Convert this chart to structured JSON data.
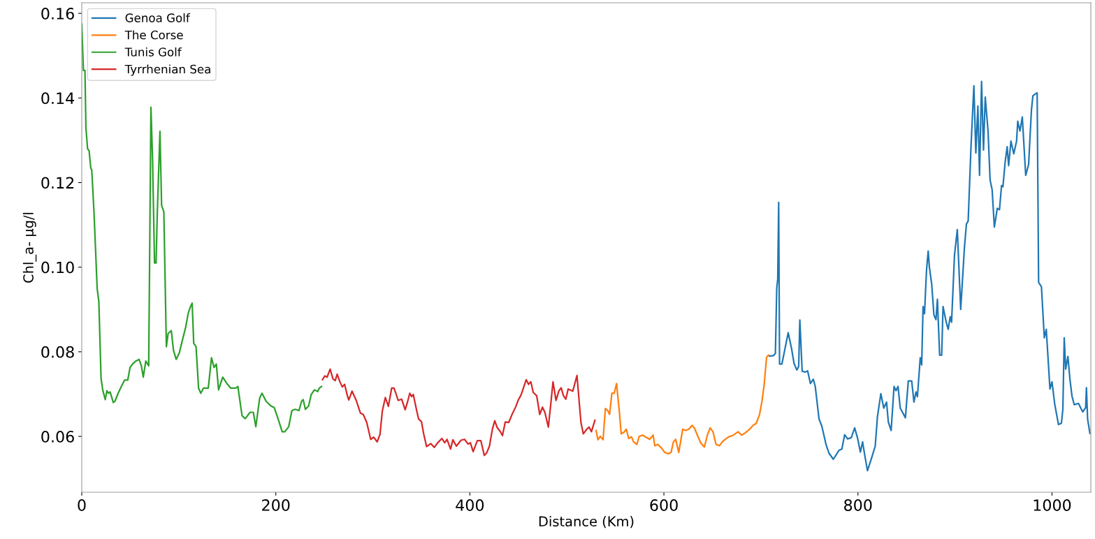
{
  "chart_data": {
    "type": "line",
    "xlabel": "Distance (Km)",
    "ylabel": "Chl_a- µg/l",
    "xlim": [
      0,
      1040
    ],
    "ylim": [
      0.0468,
      0.1625
    ],
    "xticks": [
      0,
      200,
      400,
      600,
      800,
      1000
    ],
    "yticks": [
      0.06,
      0.08,
      {
        "value": 0.1,
        "label": "0.10"
      },
      0.12,
      0.14,
      0.16
    ],
    "grid": false,
    "legend": "top left",
    "marker": "none",
    "line_style": "solid",
    "series": [
      {
        "name": "Genoa Golf",
        "color": "#1f77b4",
        "x": [
          708.9,
          713,
          714.9,
          716.3,
          717.3,
          718.3,
          719.2,
          721.6,
          724,
          728.1,
          731.7,
          734.1,
          737,
          738.9,
          740.1,
          742.5,
          745.6,
          748.1,
          751,
          754,
          756,
          759.9,
          762.8,
          767.2,
          770.2,
          774.6,
          777.5,
          780.4,
          783.4,
          786.3,
          789.3,
          793.1,
          796.6,
          799.5,
          802.5,
          804.8,
          806.9,
          809.8,
          814.2,
          817.8,
          820.1,
          823.6,
          826.6,
          829.5,
          831.3,
          834.2,
          837.2,
          839.2,
          841.3,
          843.6,
          848.9,
          851.9,
          855.4,
          857.7,
          859.8,
          861.3,
          864.2,
          865.7,
          867.1,
          868.6,
          870.7,
          872.4,
          873.6,
          876,
          878.3,
          880.4,
          881.9,
          884.2,
          886.3,
          887.7,
          890.7,
          893,
          895.1,
          896.5,
          899.5,
          902.4,
          905.9,
          909.8,
          911.8,
          913.6,
          916.5,
          919.5,
          921.5,
          923.6,
          925.3,
          927.4,
          929.4,
          931.2,
          934.1,
          936.2,
          938.3,
          940.6,
          943.6,
          945.9,
          948,
          949.4,
          951.8,
          953.8,
          955.3,
          957.7,
          960.6,
          963.5,
          964.7,
          967,
          969.4,
          972.9,
          975.9,
          978.8,
          980.3,
          982.4,
          984.7,
          986.2,
          989.1,
          992.1,
          994.1,
          995.9,
          997.9,
          1000,
          1002.9,
          1006.7,
          1009.7,
          1011.2,
          1012.6,
          1014.1,
          1016.4,
          1018.5,
          1020.6,
          1022.9,
          1027.3,
          1030.3,
          1031.7,
          1034.7,
          1035.5,
          1036.7,
          1039.1
        ],
        "values": [
          0.079,
          0.0791,
          0.0796,
          0.095,
          0.0972,
          0.1153,
          0.0771,
          0.0771,
          0.0798,
          0.0845,
          0.0806,
          0.0773,
          0.0757,
          0.0765,
          0.0875,
          0.0754,
          0.0752,
          0.0755,
          0.0725,
          0.0735,
          0.0718,
          0.0641,
          0.0624,
          0.058,
          0.056,
          0.0546,
          0.0556,
          0.0567,
          0.057,
          0.0604,
          0.0594,
          0.0597,
          0.062,
          0.0597,
          0.0563,
          0.0587,
          0.0557,
          0.0519,
          0.055,
          0.0577,
          0.0647,
          0.0701,
          0.0667,
          0.0681,
          0.0634,
          0.0614,
          0.0718,
          0.0708,
          0.0718,
          0.0667,
          0.0644,
          0.0731,
          0.0731,
          0.0681,
          0.0705,
          0.0694,
          0.0786,
          0.0769,
          0.0907,
          0.089,
          0.0994,
          0.1038,
          0.1001,
          0.096,
          0.0887,
          0.0876,
          0.0924,
          0.0792,
          0.0792,
          0.0907,
          0.0873,
          0.0853,
          0.0883,
          0.087,
          0.1028,
          0.1089,
          0.09,
          0.1048,
          0.1102,
          0.1109,
          0.1284,
          0.1429,
          0.127,
          0.1381,
          0.1217,
          0.1439,
          0.1277,
          0.1402,
          0.1321,
          0.1206,
          0.1183,
          0.1095,
          0.1139,
          0.1136,
          0.1193,
          0.119,
          0.125,
          0.1285,
          0.124,
          0.1298,
          0.1268,
          0.1298,
          0.1345,
          0.1322,
          0.1355,
          0.1217,
          0.1243,
          0.1371,
          0.1405,
          0.1409,
          0.1412,
          0.0964,
          0.0954,
          0.0833,
          0.0853,
          0.0786,
          0.0712,
          0.0729,
          0.0675,
          0.0628,
          0.0631,
          0.0664,
          0.0833,
          0.0759,
          0.0789,
          0.0735,
          0.0695,
          0.0675,
          0.0678,
          0.0664,
          0.0658,
          0.0668,
          0.0715,
          0.0641,
          0.0607
        ]
      },
      {
        "name": "The Corse",
        "color": "#ff7f0e",
        "x": [
          530.1,
          532,
          534.4,
          537.3,
          539.7,
          542.1,
          544,
          546.4,
          548.8,
          551.2,
          554.1,
          556,
          558.9,
          561.3,
          563.7,
          566.6,
          568.5,
          572.1,
          574.5,
          578.1,
          581.7,
          585.3,
          588.9,
          590.6,
          593.7,
          597.3,
          600.9,
          604.5,
          607.4,
          609.8,
          612.2,
          615.3,
          619.4,
          622.5,
          625.6,
          629,
          631.4,
          634.5,
          638.1,
          641.7,
          644.8,
          647.7,
          650.6,
          653.7,
          657.3,
          660.2,
          662.6,
          666.9,
          671.7,
          676.5,
          680.1,
          683.7,
          688.5,
          691.4,
          695.2,
          698.6,
          701,
          703.4,
          705.8,
          707.7
        ],
        "values": [
          0.0614,
          0.0592,
          0.06,
          0.0592,
          0.0666,
          0.0661,
          0.0652,
          0.0702,
          0.0702,
          0.0725,
          0.0658,
          0.0606,
          0.061,
          0.0617,
          0.0595,
          0.0599,
          0.0588,
          0.0581,
          0.06,
          0.0603,
          0.0598,
          0.0593,
          0.0603,
          0.0578,
          0.0581,
          0.0573,
          0.0562,
          0.0559,
          0.0562,
          0.0587,
          0.0593,
          0.0562,
          0.0617,
          0.0614,
          0.0617,
          0.0626,
          0.062,
          0.0603,
          0.0584,
          0.0575,
          0.0603,
          0.062,
          0.0611,
          0.0581,
          0.0578,
          0.0587,
          0.0592,
          0.0599,
          0.0603,
          0.0611,
          0.0603,
          0.0608,
          0.0617,
          0.0625,
          0.0631,
          0.0652,
          0.0682,
          0.0723,
          0.0787,
          0.0792
        ]
      },
      {
        "name": "Tunis Golf",
        "color": "#2ca02c",
        "x": [
          0,
          1.7,
          3.3,
          4.3,
          6,
          7.6,
          9.3,
          10.3,
          12.6,
          15.9,
          17.6,
          19.9,
          21.6,
          24.2,
          25.9,
          27.5,
          29.2,
          32.5,
          34.2,
          37.5,
          40.8,
          44.1,
          47.4,
          49.8,
          52.4,
          55.7,
          59.1,
          61.4,
          63.4,
          66,
          69,
          71.3,
          73,
          75,
          76.6,
          77.9,
          80.6,
          82.3,
          84.6,
          87.2,
          89,
          92.3,
          94.5,
          97.3,
          100.5,
          103.8,
          107.1,
          109.8,
          112.1,
          113.8,
          115.4,
          117.8,
          120.4,
          122.7,
          125.4,
          130.4,
          133.7,
          136.3,
          138.7,
          141,
          145.3,
          149.6,
          153.6,
          158.6,
          160.9,
          165.2,
          168.5,
          173.5,
          176.8,
          179.4,
          183.4,
          185.8,
          190,
          195,
          198.4,
          201.7,
          206.6,
          209.3,
          213.3,
          216.6,
          219.9,
          223.9,
          226.5,
          228.2,
          230.5,
          233.8,
          236.5,
          239.8,
          243.1,
          244.8,
          247.1
        ],
        "values": [
          0.1575,
          0.1465,
          0.1465,
          0.1329,
          0.128,
          0.1275,
          0.1234,
          0.123,
          0.1131,
          0.0949,
          0.0919,
          0.0737,
          0.071,
          0.0687,
          0.0708,
          0.0702,
          0.0705,
          0.068,
          0.0683,
          0.0702,
          0.0718,
          0.0733,
          0.0733,
          0.0763,
          0.0771,
          0.0778,
          0.0782,
          0.0767,
          0.074,
          0.0778,
          0.0767,
          0.1378,
          0.1253,
          0.101,
          0.101,
          0.1131,
          0.1321,
          0.1146,
          0.1131,
          0.0812,
          0.0843,
          0.085,
          0.0804,
          0.0782,
          0.0797,
          0.0828,
          0.0858,
          0.0892,
          0.0907,
          0.0915,
          0.082,
          0.0812,
          0.0714,
          0.0702,
          0.0714,
          0.0714,
          0.0786,
          0.0763,
          0.0771,
          0.071,
          0.074,
          0.0725,
          0.0714,
          0.0714,
          0.0718,
          0.0649,
          0.0642,
          0.0657,
          0.0657,
          0.0623,
          0.0691,
          0.0702,
          0.0683,
          0.0672,
          0.0668,
          0.0646,
          0.0611,
          0.0611,
          0.0623,
          0.0661,
          0.0664,
          0.0661,
          0.0683,
          0.0687,
          0.0664,
          0.0672,
          0.0699,
          0.071,
          0.0706,
          0.0714,
          0.0718
        ]
      },
      {
        "name": "Tyrrhenian Sea",
        "color": "#d62728",
        "x": [
          248.1,
          250.5,
          252.9,
          256,
          258.9,
          261.3,
          263.2,
          266.1,
          268.5,
          270.9,
          273.8,
          275.2,
          278.6,
          282.9,
          287.2,
          290.1,
          293.7,
          297.8,
          300.9,
          304.5,
          307.4,
          309.8,
          312.9,
          316,
          319.4,
          321.8,
          323.7,
          326.1,
          329.7,
          333.3,
          335.7,
          338.1,
          340,
          341.7,
          345.3,
          347.2,
          350.1,
          352.5,
          355.4,
          359.7,
          363.3,
          366.9,
          371.2,
          374.1,
          376.5,
          380.1,
          382.5,
          386.1,
          390.9,
          394.5,
          398.1,
          400.5,
          403.4,
          407.7,
          411.3,
          414.9,
          417.3,
          420.2,
          423.3,
          425.7,
          428.1,
          431.2,
          433.6,
          436.5,
          440.1,
          443.7,
          447.3,
          449.7,
          452.8,
          455.7,
          458.1,
          460.5,
          462.9,
          465.3,
          468.9,
          472,
          474.9,
          477.3,
          480.9,
          483.3,
          485.7,
          488.8,
          491.7,
          494.1,
          496.5,
          498.9,
          501.3,
          506.1,
          510.4,
          514.5,
          516.9,
          520.5,
          522.9,
          525.3,
          528.9
        ],
        "values": [
          0.0734,
          0.0743,
          0.074,
          0.0759,
          0.0736,
          0.0732,
          0.0747,
          0.0729,
          0.0717,
          0.0723,
          0.0696,
          0.0686,
          0.0707,
          0.0685,
          0.0655,
          0.0652,
          0.0633,
          0.0593,
          0.0598,
          0.0587,
          0.0605,
          0.066,
          0.0692,
          0.0671,
          0.0714,
          0.0714,
          0.0702,
          0.0685,
          0.0688,
          0.0663,
          0.0681,
          0.0702,
          0.0694,
          0.0699,
          0.066,
          0.0641,
          0.0635,
          0.0605,
          0.0576,
          0.0583,
          0.0574,
          0.0585,
          0.0595,
          0.0585,
          0.0593,
          0.057,
          0.0592,
          0.0577,
          0.0591,
          0.0593,
          0.0582,
          0.0585,
          0.0564,
          0.059,
          0.059,
          0.0555,
          0.0561,
          0.0577,
          0.0618,
          0.0637,
          0.0621,
          0.0612,
          0.0602,
          0.0634,
          0.0633,
          0.0653,
          0.067,
          0.0685,
          0.0698,
          0.0718,
          0.0734,
          0.0723,
          0.0729,
          0.0704,
          0.0696,
          0.0652,
          0.0669,
          0.0657,
          0.0622,
          0.0674,
          0.0729,
          0.0685,
          0.0707,
          0.0715,
          0.0696,
          0.0688,
          0.0712,
          0.0707,
          0.0744,
          0.0633,
          0.0606,
          0.0617,
          0.0622,
          0.0611,
          0.0638
        ]
      }
    ]
  }
}
